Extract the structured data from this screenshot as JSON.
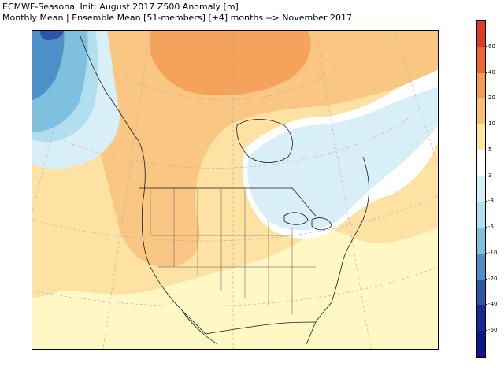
{
  "header": {
    "title_line1": "ECMWF-Seasonal Init: August 2017 Z500 Anomaly [m]",
    "title_line2": "Monthly Mean | Ensemble Mean [51-members] [+4] months --> November 2017"
  },
  "colorbar": {
    "labels": [
      "60",
      "40",
      "20",
      "10",
      "5",
      "3",
      "-3",
      "-5",
      "-10",
      "-20",
      "-40",
      "-60"
    ],
    "colors": [
      "#e03a22",
      "#f0642e",
      "#f59a4f",
      "#f9c16f",
      "#fde79c",
      "#ffffff",
      "#d9eff7",
      "#b2dfee",
      "#7fc0de",
      "#4f8fc8",
      "#2c56a8",
      "#1c2892",
      "#10148a"
    ]
  },
  "map": {
    "anomaly_fields": [
      {
        "region": "northern Canada / Arctic archipelago",
        "anomaly_range": "20 to 40"
      },
      {
        "region": "northwest Canada / Alaska panhandle",
        "anomaly_range": "10 to 20"
      },
      {
        "region": "Gulf of Alaska (northwest corner)",
        "anomaly_range": "-10 to -20"
      },
      {
        "region": "Hudson Bay / Great Lakes / Quebec",
        "anomaly_range": "-3 to 3"
      },
      {
        "region": "western and central United States",
        "anomaly_range": "5 to 10"
      },
      {
        "region": "southeast United States / Gulf of Mexico",
        "anomaly_range": "3 to 5"
      },
      {
        "region": "northeast Atlantic (east edge)",
        "anomaly_range": "10 to 20"
      }
    ]
  }
}
